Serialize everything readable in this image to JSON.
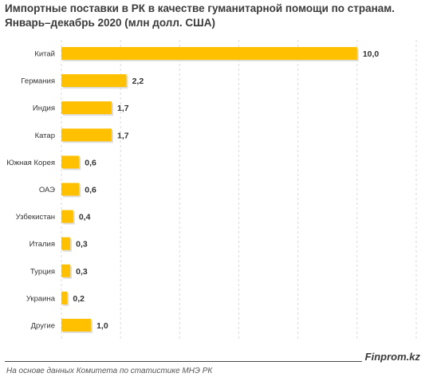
{
  "chart_data": {
    "type": "bar",
    "orientation": "horizontal",
    "title": "Импортные поставки в РК в качестве гуманитарной помощи по странам.",
    "subtitle": "Январь–декабрь 2020 (млн долл. США)",
    "categories": [
      "Китай",
      "Германия",
      "Индия",
      "Катар",
      "Южная Корея",
      "ОАЭ",
      "Узбекистан",
      "Италия",
      "Турция",
      "Украина",
      "Другие"
    ],
    "values": [
      10.0,
      2.2,
      1.7,
      1.7,
      0.6,
      0.6,
      0.4,
      0.3,
      0.3,
      0.2,
      1.0
    ],
    "value_labels": [
      "10,0",
      "2,2",
      "1,7",
      "1,7",
      "0,6",
      "0,6",
      "0,4",
      "0,3",
      "0,3",
      "0,2",
      "1,0"
    ],
    "xlim": [
      0,
      12
    ],
    "grid": true,
    "colors": {
      "bar": "#FFC000",
      "grid": "#d9d9d9",
      "text": "#333333"
    }
  },
  "footer": {
    "brand": "Finprom.kz",
    "source": "На основе данных  Комитета по статистике МНЭ РК"
  }
}
